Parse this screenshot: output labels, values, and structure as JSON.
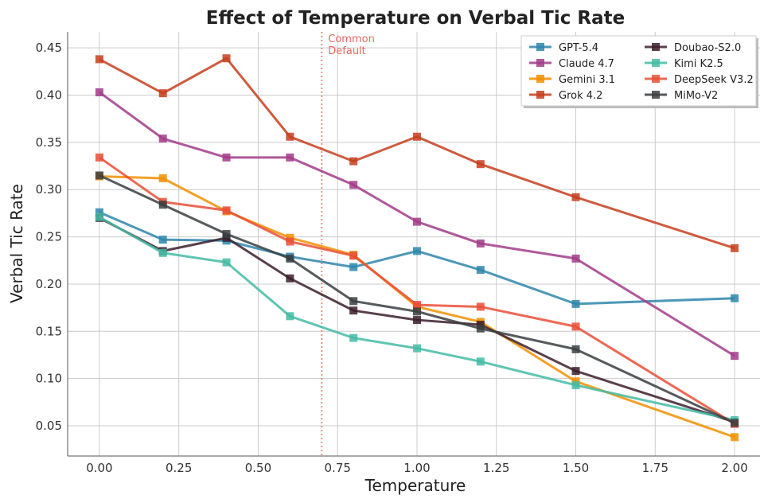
{
  "chart_data": {
    "type": "line",
    "title": "Effect of Temperature on Verbal Tic Rate",
    "xlabel": "Temperature",
    "ylabel": "Verbal Tic Rate",
    "xlim": [
      -0.1,
      2.08
    ],
    "ylim": [
      0.018,
      0.467
    ],
    "x_ticks": [
      0.0,
      0.25,
      0.5,
      0.75,
      1.0,
      1.25,
      1.5,
      1.75,
      2.0
    ],
    "x_tick_labels": [
      "0.00",
      "0.25",
      "0.50",
      "0.75",
      "1.00",
      "1.25",
      "1.50",
      "1.75",
      "2.00"
    ],
    "y_ticks": [
      0.05,
      0.1,
      0.15,
      0.2,
      0.25,
      0.3,
      0.35,
      0.4,
      0.45
    ],
    "y_tick_labels": [
      "0.05",
      "0.10",
      "0.15",
      "0.20",
      "0.25",
      "0.30",
      "0.35",
      "0.40",
      "0.45"
    ],
    "grid": true,
    "legend_position": "top-right",
    "legend_columns": 2,
    "x": [
      0.0,
      0.2,
      0.4,
      0.6,
      0.8,
      1.0,
      1.2,
      1.5,
      2.0
    ],
    "annotation": {
      "x": 0.7,
      "lines": [
        "Common",
        "Default"
      ],
      "color": "#e86a63"
    },
    "series": [
      {
        "name": "GPT-5.4",
        "color": "#2e86ab",
        "values": [
          0.276,
          0.247,
          0.246,
          0.229,
          0.218,
          0.235,
          0.215,
          0.179,
          0.185
        ]
      },
      {
        "name": "Claude 4.7",
        "color": "#a23b88",
        "values": [
          0.403,
          0.354,
          0.334,
          0.334,
          0.305,
          0.266,
          0.243,
          0.227,
          0.124
        ]
      },
      {
        "name": "Gemini 3.1",
        "color": "#f18f01",
        "values": [
          0.314,
          0.312,
          0.277,
          0.249,
          0.231,
          0.176,
          0.16,
          0.097,
          0.038
        ]
      },
      {
        "name": "Grok 4.2",
        "color": "#c73e1d",
        "values": [
          0.438,
          0.402,
          0.439,
          0.356,
          0.33,
          0.356,
          0.327,
          0.292,
          0.238
        ]
      },
      {
        "name": "Doubao-S2.0",
        "color": "#3b1f2b",
        "values": [
          0.27,
          0.235,
          0.249,
          0.206,
          0.172,
          0.162,
          0.157,
          0.108,
          0.054
        ]
      },
      {
        "name": "Kimi K2.5",
        "color": "#44bba4",
        "values": [
          0.271,
          0.233,
          0.223,
          0.166,
          0.143,
          0.132,
          0.118,
          0.093,
          0.056
        ]
      },
      {
        "name": "DeepSeek V3.2",
        "color": "#e94f37",
        "values": [
          0.334,
          0.287,
          0.278,
          0.245,
          0.23,
          0.178,
          0.176,
          0.155,
          0.052
        ]
      },
      {
        "name": "MiMo-V2",
        "color": "#393e41",
        "values": [
          0.315,
          0.284,
          0.253,
          0.227,
          0.182,
          0.171,
          0.153,
          0.131,
          0.053
        ]
      }
    ]
  }
}
